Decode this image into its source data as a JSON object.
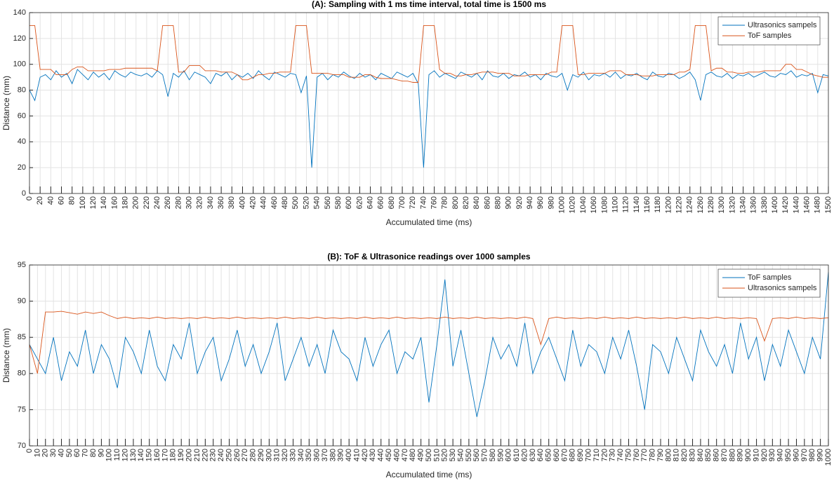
{
  "chart_data": [
    {
      "type": "line",
      "title": "(A): Sampling with 1 ms time interval, total time is 1500 ms",
      "xlabel": "Accumulated time (ms)",
      "ylabel": "Distance (mm)",
      "x": [
        0,
        10,
        20,
        30,
        40,
        50,
        60,
        70,
        80,
        90,
        100,
        110,
        120,
        130,
        140,
        150,
        160,
        170,
        180,
        190,
        200,
        210,
        220,
        230,
        240,
        250,
        260,
        270,
        280,
        290,
        300,
        310,
        320,
        330,
        340,
        350,
        360,
        370,
        380,
        390,
        400,
        410,
        420,
        430,
        440,
        450,
        460,
        470,
        480,
        490,
        500,
        510,
        520,
        530,
        540,
        550,
        560,
        570,
        580,
        590,
        600,
        610,
        620,
        630,
        640,
        650,
        660,
        670,
        680,
        690,
        700,
        710,
        720,
        730,
        740,
        750,
        760,
        770,
        780,
        790,
        800,
        810,
        820,
        830,
        840,
        850,
        860,
        870,
        880,
        890,
        900,
        910,
        920,
        930,
        940,
        950,
        960,
        970,
        980,
        990,
        1000,
        1010,
        1020,
        1030,
        1040,
        1050,
        1060,
        1070,
        1080,
        1090,
        1100,
        1110,
        1120,
        1130,
        1140,
        1150,
        1160,
        1170,
        1180,
        1190,
        1200,
        1210,
        1220,
        1230,
        1240,
        1250,
        1260,
        1270,
        1280,
        1290,
        1300,
        1310,
        1320,
        1330,
        1340,
        1350,
        1360,
        1370,
        1380,
        1390,
        1400,
        1410,
        1420,
        1430,
        1440,
        1450,
        1460,
        1470,
        1480,
        1490,
        1500
      ],
      "series": [
        {
          "name": "Ultrasonics sampels",
          "color": "#0072bd",
          "values": [
            80,
            72,
            90,
            92,
            88,
            95,
            90,
            93,
            85,
            96,
            92,
            88,
            94,
            90,
            93,
            88,
            95,
            92,
            90,
            94,
            92,
            91,
            93,
            90,
            95,
            92,
            75,
            93,
            90,
            95,
            88,
            94,
            92,
            90,
            85,
            93,
            91,
            94,
            88,
            92,
            90,
            93,
            89,
            95,
            91,
            88,
            94,
            92,
            90,
            93,
            92,
            78,
            91,
            20,
            90,
            93,
            88,
            92,
            90,
            94,
            91,
            89,
            93,
            90,
            92,
            88,
            93,
            91,
            89,
            94,
            92,
            90,
            93,
            85,
            20,
            92,
            95,
            90,
            93,
            91,
            89,
            94,
            92,
            90,
            93,
            88,
            95,
            91,
            90,
            93,
            89,
            92,
            91,
            94,
            90,
            92,
            88,
            93,
            91,
            90,
            93,
            80,
            92,
            90,
            94,
            88,
            92,
            91,
            93,
            90,
            94,
            89,
            92,
            91,
            93,
            90,
            88,
            94,
            91,
            90,
            93,
            92,
            89,
            91,
            94,
            88,
            72,
            92,
            94,
            91,
            90,
            93,
            89,
            92,
            91,
            93,
            90,
            92,
            94,
            91,
            90,
            93,
            92,
            95,
            90,
            92,
            91,
            93,
            78,
            92,
            91
          ]
        },
        {
          "name": "ToF samples",
          "color": "#d95319",
          "values": [
            130,
            130,
            96,
            96,
            96,
            92,
            92,
            92,
            96,
            98,
            98,
            95,
            95,
            95,
            95,
            96,
            96,
            96,
            97,
            97,
            97,
            97,
            97,
            97,
            95,
            130,
            130,
            130,
            94,
            94,
            99,
            99,
            99,
            95,
            95,
            95,
            94,
            94,
            94,
            92,
            88,
            88,
            90,
            92,
            92,
            93,
            93,
            94,
            94,
            94,
            130,
            130,
            130,
            93,
            93,
            93,
            93,
            92,
            92,
            92,
            90,
            90,
            90,
            92,
            92,
            90,
            89,
            89,
            89,
            88,
            87,
            87,
            86,
            86,
            130,
            130,
            130,
            96,
            93,
            93,
            91,
            91,
            92,
            92,
            93,
            94,
            94,
            94,
            93,
            93,
            93,
            91,
            91,
            91,
            92,
            92,
            92,
            92,
            94,
            94,
            130,
            130,
            130,
            92,
            92,
            93,
            93,
            93,
            93,
            95,
            95,
            95,
            92,
            92,
            92,
            91,
            91,
            91,
            92,
            92,
            92,
            92,
            94,
            94,
            96,
            130,
            130,
            130,
            95,
            97,
            97,
            94,
            94,
            93,
            93,
            94,
            94,
            94,
            95,
            95,
            95,
            95,
            100,
            100,
            96,
            96,
            94,
            92,
            91,
            90,
            90
          ]
        }
      ],
      "xlim": [
        0,
        1500
      ],
      "ylim": [
        0,
        140
      ],
      "xticks": [
        0,
        20,
        40,
        60,
        80,
        100,
        120,
        140,
        160,
        180,
        200,
        220,
        240,
        260,
        280,
        300,
        320,
        340,
        360,
        380,
        400,
        420,
        440,
        460,
        480,
        500,
        520,
        540,
        560,
        580,
        600,
        620,
        640,
        660,
        680,
        700,
        720,
        740,
        760,
        780,
        800,
        820,
        840,
        860,
        880,
        900,
        920,
        940,
        960,
        980,
        1000,
        1020,
        1040,
        1060,
        1080,
        1100,
        1120,
        1140,
        1160,
        1180,
        1200,
        1220,
        1240,
        1260,
        1280,
        1300,
        1320,
        1340,
        1360,
        1380,
        1400,
        1420,
        1440,
        1460,
        1480,
        1500
      ],
      "yticks": [
        0,
        20,
        40,
        60,
        80,
        100,
        120,
        140
      ],
      "grid": true,
      "legend": "upper right"
    },
    {
      "type": "line",
      "title": "(B): ToF & Ultrasonice readings over 1000 samples",
      "xlabel": "Accumulated time (ms)",
      "ylabel": "Distance (mm)",
      "x": [
        0,
        10,
        20,
        30,
        40,
        50,
        60,
        70,
        80,
        90,
        100,
        110,
        120,
        130,
        140,
        150,
        160,
        170,
        180,
        190,
        200,
        210,
        220,
        230,
        240,
        250,
        260,
        270,
        280,
        290,
        300,
        310,
        320,
        330,
        340,
        350,
        360,
        370,
        380,
        390,
        400,
        410,
        420,
        430,
        440,
        450,
        460,
        470,
        480,
        490,
        500,
        510,
        520,
        530,
        540,
        550,
        560,
        570,
        580,
        590,
        600,
        610,
        620,
        630,
        640,
        650,
        660,
        670,
        680,
        690,
        700,
        710,
        720,
        730,
        740,
        750,
        760,
        770,
        780,
        790,
        800,
        810,
        820,
        830,
        840,
        850,
        860,
        870,
        880,
        890,
        900,
        910,
        920,
        930,
        940,
        950,
        960,
        970,
        980,
        990,
        1000
      ],
      "series": [
        {
          "name": "ToF samples",
          "color": "#0072bd",
          "values": [
            84,
            82,
            80,
            85,
            79,
            83,
            81,
            86,
            80,
            84,
            82,
            78,
            85,
            83,
            80,
            86,
            81,
            79,
            84,
            82,
            87,
            80,
            83,
            85,
            79,
            82,
            86,
            81,
            84,
            80,
            83,
            87,
            79,
            82,
            85,
            81,
            84,
            80,
            86,
            83,
            82,
            79,
            85,
            81,
            84,
            86,
            80,
            83,
            82,
            85,
            76,
            84,
            93,
            81,
            86,
            80,
            74,
            79,
            85,
            82,
            84,
            81,
            87,
            80,
            83,
            85,
            82,
            79,
            86,
            81,
            84,
            83,
            80,
            85,
            82,
            86,
            81,
            75,
            84,
            83,
            80,
            85,
            82,
            79,
            86,
            83,
            81,
            84,
            80,
            87,
            82,
            85,
            79,
            84,
            81,
            86,
            83,
            80,
            85,
            82,
            94
          ]
        },
        {
          "name": "Ultrasonics sampels",
          "color": "#d95319",
          "values": [
            84,
            80,
            88.5,
            88.5,
            88.6,
            88.4,
            88.2,
            88.5,
            88.3,
            88.5,
            88,
            87.6,
            87.8,
            87.6,
            87.7,
            87.6,
            87.8,
            87.6,
            87.7,
            87.6,
            87.7,
            87.6,
            87.8,
            87.6,
            87.7,
            87.6,
            87.8,
            87.6,
            87.7,
            87.6,
            87.7,
            87.6,
            87.8,
            87.6,
            87.7,
            87.6,
            87.8,
            87.6,
            87.7,
            87.6,
            87.7,
            87.6,
            87.8,
            87.6,
            87.7,
            87.6,
            87.8,
            87.6,
            87.7,
            87.6,
            87.7,
            87.6,
            87.8,
            87.6,
            87.7,
            87.6,
            87.8,
            87.6,
            87.7,
            87.6,
            87.7,
            87.6,
            87.8,
            87.6,
            84,
            87.6,
            87.8,
            87.6,
            87.7,
            87.6,
            87.7,
            87.6,
            87.8,
            87.6,
            87.7,
            87.6,
            87.8,
            87.6,
            87.7,
            87.6,
            87.7,
            87.6,
            87.8,
            87.6,
            87.7,
            87.6,
            87.8,
            87.6,
            87.7,
            87.6,
            87.7,
            87.6,
            84.5,
            87.6,
            87.7,
            87.6,
            87.8,
            87.6,
            87.7,
            87.6,
            87.7
          ]
        }
      ],
      "xlim": [
        0,
        1000
      ],
      "ylim": [
        70,
        95
      ],
      "xticks": [
        0,
        10,
        20,
        30,
        40,
        50,
        60,
        70,
        80,
        90,
        100,
        110,
        120,
        130,
        140,
        150,
        160,
        170,
        180,
        190,
        200,
        210,
        220,
        230,
        240,
        250,
        260,
        270,
        280,
        290,
        300,
        310,
        320,
        330,
        340,
        350,
        360,
        370,
        380,
        390,
        400,
        410,
        420,
        430,
        440,
        450,
        460,
        470,
        480,
        490,
        500,
        510,
        520,
        530,
        540,
        550,
        560,
        570,
        580,
        590,
        600,
        610,
        620,
        630,
        640,
        650,
        660,
        670,
        680,
        690,
        700,
        710,
        720,
        730,
        740,
        750,
        760,
        770,
        780,
        790,
        800,
        810,
        820,
        830,
        840,
        850,
        860,
        870,
        880,
        890,
        900,
        910,
        920,
        930,
        940,
        950,
        960,
        970,
        980,
        990,
        1000
      ],
      "yticks": [
        70,
        75,
        80,
        85,
        90,
        95
      ],
      "grid": true,
      "legend": "upper right"
    }
  ]
}
